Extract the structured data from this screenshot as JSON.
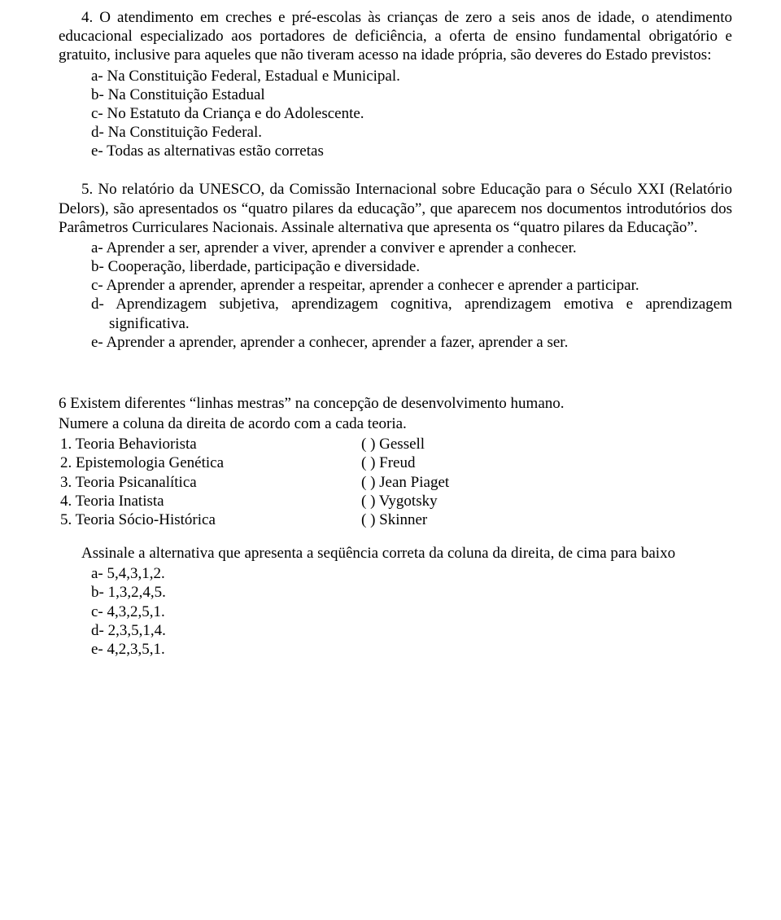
{
  "q4": {
    "stem": "4. O atendimento em creches e pré-escolas às crianças de zero a seis anos de idade, o atendimento educacional especializado aos portadores de deficiência, a oferta de ensino fundamental obrigatório e gratuito, inclusive para aqueles que não tiveram acesso na idade própria, são deveres do Estado previstos:",
    "options": {
      "a": "a-  Na Constituição Federal, Estadual e Municipal.",
      "b": "b-  Na Constituição Estadual",
      "c": "c-  No Estatuto da Criança e do Adolescente.",
      "d": "d-  Na Constituição Federal.",
      "e": "e-  Todas as alternativas estão corretas"
    }
  },
  "q5": {
    "stem": "5. No relatório da UNESCO, da Comissão Internacional sobre Educação para o Século XXI (Relatório Delors), são apresentados os “quatro pilares da educação”, que aparecem nos documentos introdutórios dos Parâmetros Curriculares Nacionais. Assinale alternativa que apresenta os “quatro pilares da Educação”.",
    "options": {
      "a": "a-  Aprender a ser, aprender a viver, aprender a conviver e aprender a conhecer.",
      "b": "b-  Cooperação, liberdade, participação e diversidade.",
      "c": "c-  Aprender a aprender, aprender a respeitar, aprender a conhecer e  aprender a participar.",
      "d": "d-  Aprendizagem subjetiva, aprendizagem cognitiva, aprendizagem emotiva e aprendizagem significativa.",
      "e": "e-  Aprender a aprender, aprender a conhecer, aprender a fazer, aprender a ser."
    }
  },
  "q6": {
    "stem1": "6   Existem diferentes “linhas mestras” na concepção de desenvolvimento humano.",
    "stem2": "Numere a coluna da direita de acordo  com a cada teoria.",
    "rows": [
      {
        "left": "1.   Teoria  Behaviorista",
        "right": "(   ) Gessell"
      },
      {
        "left": "2.    Epistemologia Genética",
        "right": "(   ) Freud"
      },
      {
        "left": "3.   Teoria Psicanalítica",
        "right": "(   ) Jean Piaget"
      },
      {
        "left": "4.   Teoria Inatista",
        "right": "(   ) Vygotsky"
      },
      {
        "left": "5.   Teoria Sócio-Histórica",
        "right": "(   ) Skinner"
      }
    ],
    "seq_intro": "Assinale a alternativa que apresenta a seqüência correta da coluna da direita, de cima para baixo",
    "options": {
      "a": "a-  5,4,3,1,2.",
      "b": "b-  1,3,2,4,5.",
      "c": "c-  4,3,2,5,1.",
      "d": "d-  2,3,5,1,4.",
      "e": "e-  4,2,3,5,1."
    }
  }
}
